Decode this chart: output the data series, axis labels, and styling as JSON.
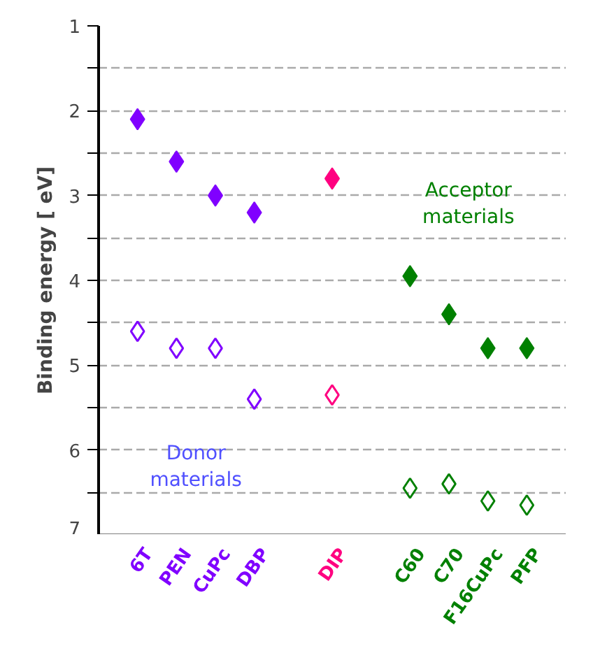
{
  "chart_data": {
    "type": "scatter",
    "ylabel": "Binding energy [ eV]",
    "categories": [
      "6T",
      "PEN",
      "CuPc",
      "DBP",
      null,
      "DIP",
      null,
      "C60",
      "C70",
      "F16CuPc",
      "PFP"
    ],
    "series": [
      {
        "colors": [
          "#8000ff",
          "#8000ff",
          "#8000ff",
          "#8000ff",
          null,
          "#ff0080",
          null,
          "#008000",
          "#008000",
          "#008000",
          "#008000"
        ],
        "values": [
          2.1,
          2.6,
          3.0,
          3.2,
          null,
          2.8,
          null,
          3.95,
          4.4,
          4.8,
          4.8
        ]
      },
      {
        "colors": [
          "#8000ff",
          "#8000ff",
          "#8000ff",
          "#8000ff",
          null,
          "#ff0080",
          null,
          "#008000",
          "#008000",
          "#008000",
          "#008000"
        ],
        "values": [
          4.6,
          4.8,
          4.8,
          5.4,
          null,
          5.35,
          null,
          6.45,
          6.4,
          6.6,
          6.65
        ]
      }
    ],
    "ylim": [
      7,
      1
    ],
    "yticks": [
      1,
      {
        "value": 1.5,
        "label": null
      },
      2,
      {
        "value": 2.5,
        "label": null
      },
      3,
      {
        "value": 3.5,
        "label": null
      },
      4,
      {
        "value": 4.5,
        "label": null
      },
      5,
      {
        "value": 5.5,
        "label": null
      },
      6,
      {
        "value": 6.5,
        "label": null
      },
      7
    ],
    "grid": "y",
    "marker": "diamond",
    "annotations": [
      "Acceptor\nmaterials",
      "Donor\nmaterials"
    ]
  }
}
